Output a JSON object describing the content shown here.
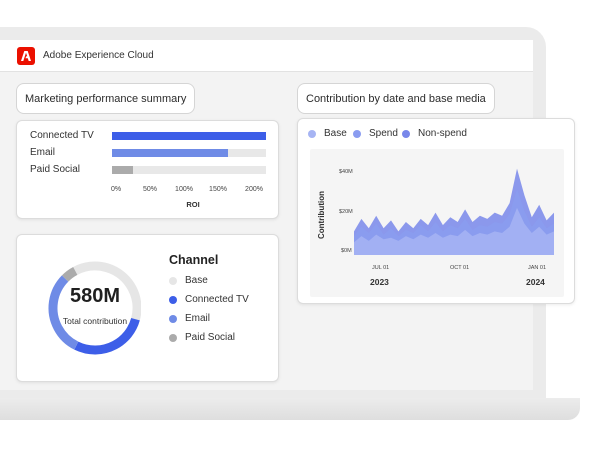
{
  "app": {
    "title": "Adobe Experience Cloud",
    "logo_icon": "adobe-logo-icon",
    "brand_color": "#eb1000"
  },
  "performance": {
    "title": "Marketing performance summary",
    "axis_label": "ROI",
    "ticks": [
      "0%",
      "50%",
      "100%",
      "150%",
      "200%"
    ],
    "rows": [
      {
        "label": "Connected TV",
        "value": 225,
        "color": "#3d5ee8"
      },
      {
        "label": "Email",
        "value": 170,
        "color": "#6f8be6"
      },
      {
        "label": "Paid Social",
        "value": 30,
        "color": "#ababab"
      }
    ]
  },
  "contribution_total": {
    "value": "580M",
    "label": "Total contribution",
    "legend_title": "Channel",
    "channels": [
      {
        "label": "Base",
        "color": "#e6e6e6",
        "share": 0.37
      },
      {
        "label": "Connected TV",
        "color": "#3d5ee8",
        "share": 0.28
      },
      {
        "label": "Email",
        "color": "#6f8be6",
        "share": 0.3
      },
      {
        "label": "Paid Social",
        "color": "#ababab",
        "share": 0.05
      }
    ]
  },
  "contribution_chart": {
    "title": "Contribution by date and base media",
    "y_axis_title": "Contribution",
    "series_legend": [
      {
        "label": "Base",
        "color": "#a6b4f3"
      },
      {
        "label": "Spend",
        "color": "#8a9cf0"
      },
      {
        "label": "Non-spend",
        "color": "#7887ea"
      }
    ],
    "y_ticks": [
      "$40M",
      "$20M",
      "$0M"
    ],
    "x_ticks": [
      "JUL 01",
      "OCT 01",
      "JAN 01"
    ],
    "years": [
      "2023",
      "2024"
    ]
  },
  "chart_data": [
    {
      "type": "bar",
      "title": "",
      "categories": [
        "Connected TV",
        "Email",
        "Paid Social"
      ],
      "values": [
        225,
        170,
        30
      ],
      "xlabel": "ROI",
      "ylabel": "",
      "xlim": [
        0,
        225
      ],
      "unit": "%"
    },
    {
      "type": "pie",
      "title": "",
      "categories": [
        "Base",
        "Connected TV",
        "Email",
        "Paid Social"
      ],
      "values": [
        0.37,
        0.28,
        0.3,
        0.05
      ]
    },
    {
      "type": "area",
      "title": "Contribution by date and base media",
      "ylabel": "Contribution",
      "xlabel": "",
      "ylim": [
        0,
        40
      ],
      "x_ticks": [
        "JUL 01",
        "OCT 01",
        "JAN 01"
      ],
      "series": [
        {
          "name": "Base",
          "values": [
            8,
            12,
            9,
            13,
            10,
            11,
            9,
            12,
            10,
            13,
            11,
            14,
            11,
            13,
            12,
            16,
            12,
            14,
            13,
            15,
            14,
            18,
            30,
            20,
            14,
            18,
            13,
            15
          ]
        },
        {
          "name": "Spend",
          "values": [
            12,
            18,
            14,
            20,
            13,
            17,
            12,
            16,
            14,
            19,
            15,
            21,
            15,
            19,
            17,
            23,
            16,
            19,
            18,
            21,
            20,
            26,
            42,
            28,
            18,
            24,
            17,
            20
          ]
        },
        {
          "name": "Non-spend",
          "values": [
            15,
            23,
            17,
            25,
            17,
            22,
            15,
            21,
            17,
            23,
            19,
            27,
            19,
            24,
            21,
            29,
            21,
            25,
            23,
            27,
            25,
            33,
            55,
            38,
            24,
            32,
            22,
            27
          ]
        }
      ]
    }
  ]
}
